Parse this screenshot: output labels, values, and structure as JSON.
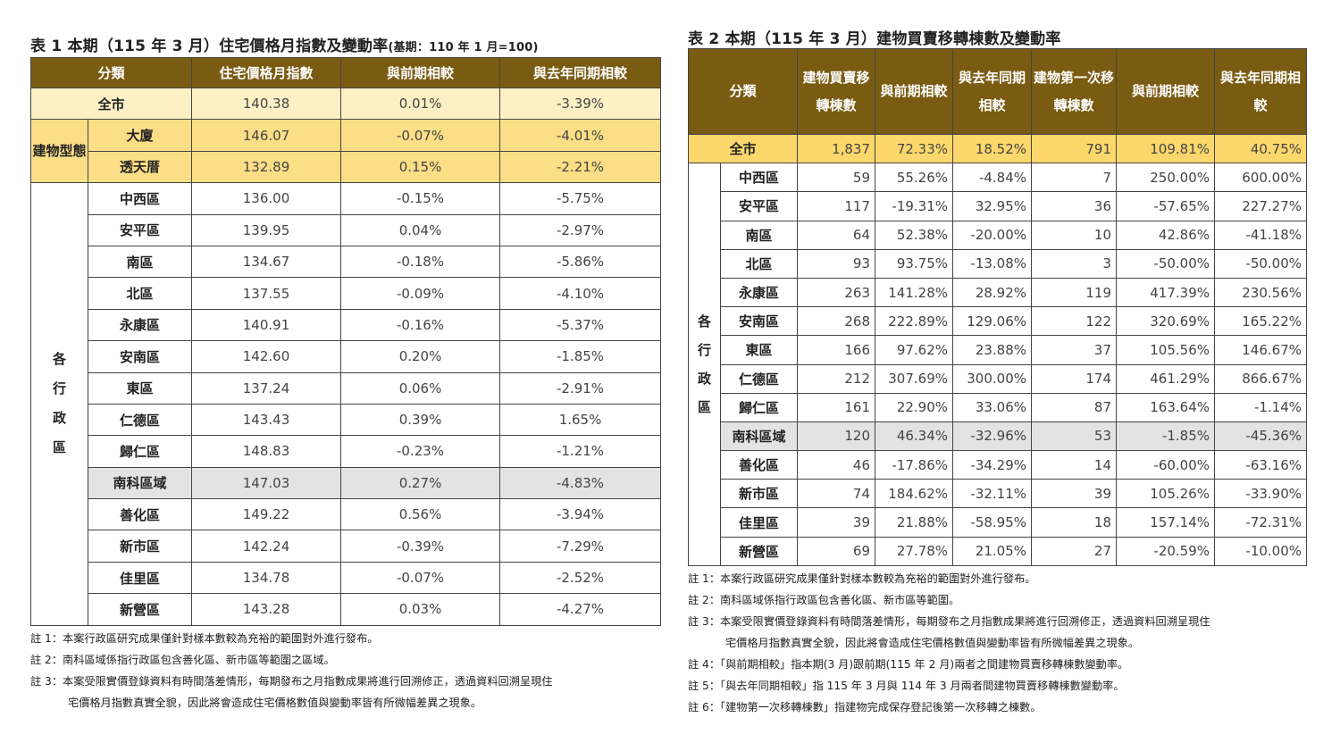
{
  "table1": {
    "title": "表 1 本期（115 年 3 月）住宅價格月指數及變動率",
    "title_base": "(基期：110 年 1 月=100)",
    "headers": [
      "分類",
      "住宅價格月指數",
      "與前期相較",
      "與去年同期相較"
    ],
    "total": {
      "label": "全市",
      "values": [
        "140.38",
        "0.01%",
        "-3.39%"
      ]
    },
    "building_group": "建物型態",
    "building_rows": [
      {
        "label": "大廈",
        "values": [
          "146.07",
          "-0.07%",
          "-4.01%"
        ]
      },
      {
        "label": "透天厝",
        "values": [
          "132.89",
          "0.15%",
          "-2.21%"
        ]
      }
    ],
    "district_group": "各行政區",
    "district_rows": [
      {
        "label": "中西區",
        "values": [
          "136.00",
          "-0.15%",
          "-5.75%"
        ]
      },
      {
        "label": "安平區",
        "values": [
          "139.95",
          "0.04%",
          "-2.97%"
        ]
      },
      {
        "label": "南區",
        "values": [
          "134.67",
          "-0.18%",
          "-5.86%"
        ]
      },
      {
        "label": "北區",
        "values": [
          "137.55",
          "-0.09%",
          "-4.10%"
        ]
      },
      {
        "label": "永康區",
        "values": [
          "140.91",
          "-0.16%",
          "-5.37%"
        ]
      },
      {
        "label": "安南區",
        "values": [
          "142.60",
          "0.20%",
          "-1.85%"
        ]
      },
      {
        "label": "東區",
        "values": [
          "137.24",
          "0.06%",
          "-2.91%"
        ]
      },
      {
        "label": "仁德區",
        "values": [
          "143.43",
          "0.39%",
          "1.65%"
        ]
      },
      {
        "label": "歸仁區",
        "values": [
          "148.83",
          "-0.23%",
          "-1.21%"
        ]
      },
      {
        "label": "南科區域",
        "values": [
          "147.03",
          "0.27%",
          "-4.83%"
        ],
        "shade": true
      },
      {
        "label": "善化區",
        "values": [
          "149.22",
          "0.56%",
          "-3.94%"
        ]
      },
      {
        "label": "新市區",
        "values": [
          "142.24",
          "-0.39%",
          "-7.29%"
        ]
      },
      {
        "label": "佳里區",
        "values": [
          "134.78",
          "-0.07%",
          "-2.52%"
        ]
      },
      {
        "label": "新營區",
        "values": [
          "143.28",
          "0.03%",
          "-4.27%"
        ]
      }
    ],
    "notes": [
      "註 1：本案行政區研究成果僅針對樣本數較為充裕的範圍對外進行發布。",
      "註 2：南科區域係指行政區包含善化區、新市區等範圍之區域。",
      "註 3：本案受限實價登錄資料有時間落差情形，每期發布之月指數成果將進行回溯修正，透過資料回溯呈現住",
      "宅價格月指數真實全貌，因此將會造成住宅價格數值與變動率皆有所微幅差異之現象。"
    ]
  },
  "table2": {
    "title": "表 2 本期（115 年 3 月）建物買賣移轉棟數及變動率",
    "headers": [
      "分類",
      "建物買賣移轉棟數",
      "與前期相較",
      "與去年同期相較",
      "建物第一次移轉棟數",
      "與前期相較",
      "與去年同期相較"
    ],
    "total": {
      "label": "全市",
      "values": [
        "1,837",
        "72.33%",
        "18.52%",
        "791",
        "109.81%",
        "40.75%"
      ]
    },
    "district_group": "各行政區",
    "district_rows": [
      {
        "label": "中西區",
        "values": [
          "59",
          "55.26%",
          "-4.84%",
          "7",
          "250.00%",
          "600.00%"
        ]
      },
      {
        "label": "安平區",
        "values": [
          "117",
          "-19.31%",
          "32.95%",
          "36",
          "-57.65%",
          "227.27%"
        ]
      },
      {
        "label": "南區",
        "values": [
          "64",
          "52.38%",
          "-20.00%",
          "10",
          "42.86%",
          "-41.18%"
        ]
      },
      {
        "label": "北區",
        "values": [
          "93",
          "93.75%",
          "-13.08%",
          "3",
          "-50.00%",
          "-50.00%"
        ]
      },
      {
        "label": "永康區",
        "values": [
          "263",
          "141.28%",
          "28.92%",
          "119",
          "417.39%",
          "230.56%"
        ]
      },
      {
        "label": "安南區",
        "values": [
          "268",
          "222.89%",
          "129.06%",
          "122",
          "320.69%",
          "165.22%"
        ]
      },
      {
        "label": "東區",
        "values": [
          "166",
          "97.62%",
          "23.88%",
          "37",
          "105.56%",
          "146.67%"
        ]
      },
      {
        "label": "仁德區",
        "values": [
          "212",
          "307.69%",
          "300.00%",
          "174",
          "461.29%",
          "866.67%"
        ]
      },
      {
        "label": "歸仁區",
        "values": [
          "161",
          "22.90%",
          "33.06%",
          "87",
          "163.64%",
          "-1.14%"
        ]
      },
      {
        "label": "南科區域",
        "values": [
          "120",
          "46.34%",
          "-32.96%",
          "53",
          "-1.85%",
          "-45.36%"
        ],
        "shade": true
      },
      {
        "label": "善化區",
        "values": [
          "46",
          "-17.86%",
          "-34.29%",
          "14",
          "-60.00%",
          "-63.16%"
        ]
      },
      {
        "label": "新市區",
        "values": [
          "74",
          "184.62%",
          "-32.11%",
          "39",
          "105.26%",
          "-33.90%"
        ]
      },
      {
        "label": "佳里區",
        "values": [
          "39",
          "21.88%",
          "-58.95%",
          "18",
          "157.14%",
          "-72.31%"
        ]
      },
      {
        "label": "新營區",
        "values": [
          "69",
          "27.78%",
          "21.05%",
          "27",
          "-20.59%",
          "-10.00%"
        ]
      }
    ],
    "notes": [
      "註 1：本案行政區研究成果僅針對樣本數較為充裕的範圍對外進行發布。",
      "註 2：南科區域係指行政區包含善化區、新市區等範圍。",
      "註 3：本案受限實價登錄資料有時間落差情形，每期發布之月指數成果將進行回溯修正，透過資料回溯呈現住",
      "宅價格月指數真實全貌，因此將會造成住宅價格數值與變動率皆有所微幅差異之現象。",
      "註 4：「與前期相較」指本期(3 月)跟前期(115 年 2 月)兩者之間建物買賣移轉棟數變動率。",
      "註 5：「與去年同期相較」指 115 年 3 月與 114 年 3 月兩者間建物買賣移轉棟數變動率。",
      "註 6：「建物第一次移轉棟數」指建物完成保存登記後第一次移轉之棟數。"
    ]
  },
  "colors": {
    "header": "#7a5b12",
    "total_left": "#fdf0c4",
    "total_right": "#fcd86c",
    "building": "#fcde86",
    "shaded": "#e3e3e3"
  }
}
